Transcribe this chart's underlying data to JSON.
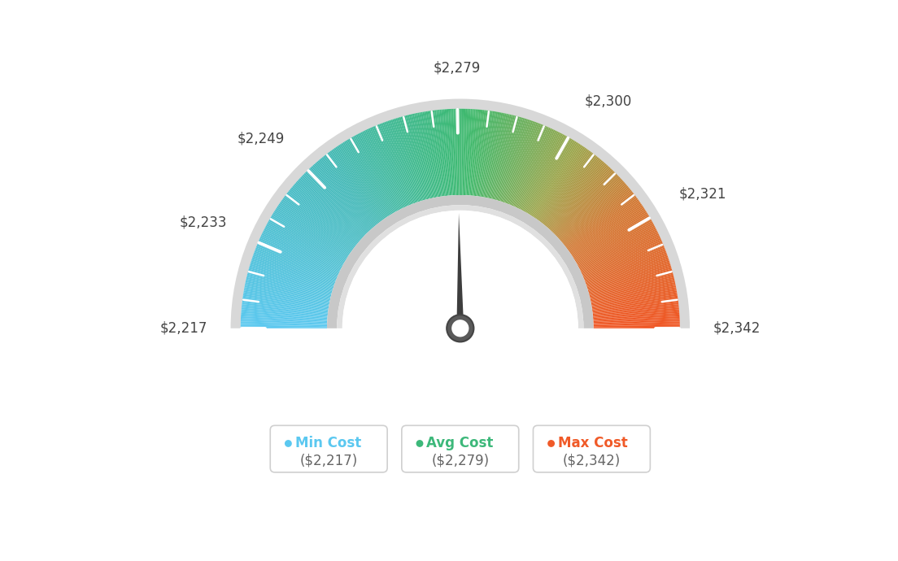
{
  "min_val": 2217,
  "avg_val": 2279,
  "max_val": 2342,
  "tick_labels": [
    {
      "value": 2217,
      "label": "$2,217"
    },
    {
      "value": 2233,
      "label": "$2,233"
    },
    {
      "value": 2249,
      "label": "$2,249"
    },
    {
      "value": 2279,
      "label": "$2,279"
    },
    {
      "value": 2300,
      "label": "$2,300"
    },
    {
      "value": 2321,
      "label": "$2,321"
    },
    {
      "value": 2342,
      "label": "$2,342"
    }
  ],
  "legend": [
    {
      "label": "Min Cost",
      "value": "($2,217)",
      "color": "#5bc8f0"
    },
    {
      "label": "Avg Cost",
      "value": "($2,279)",
      "color": "#3db87a"
    },
    {
      "label": "Max Cost",
      "value": "($2,342)",
      "color": "#f05a28"
    }
  ],
  "background_color": "#ffffff",
  "gauge_colors": {
    "blue": [
      91,
      200,
      240
    ],
    "teal_green": [
      72,
      195,
      140
    ],
    "green": [
      67,
      195,
      120
    ],
    "orange": [
      220,
      120,
      50
    ],
    "red_orange": [
      240,
      90,
      40
    ]
  }
}
